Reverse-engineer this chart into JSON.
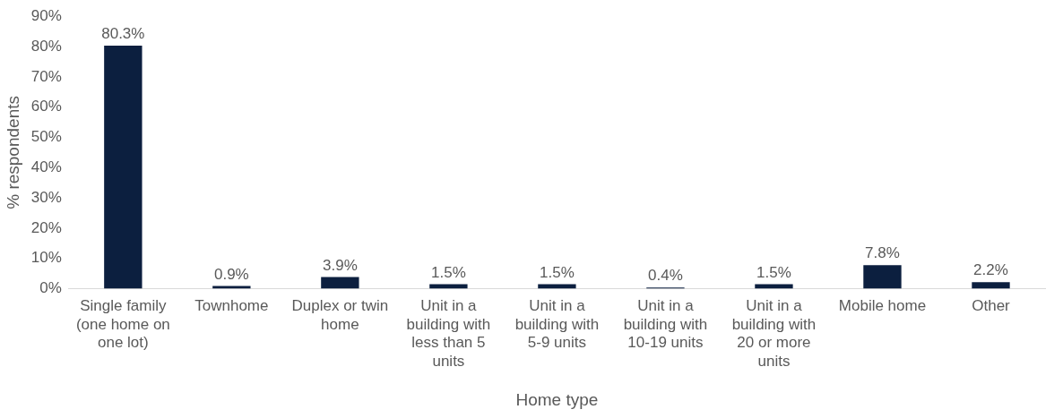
{
  "chart_data": {
    "type": "bar",
    "xlabel": "Home type",
    "ylabel": "% respondents",
    "categories": [
      "Single family (one home on one lot)",
      "Townhome",
      "Duplex or twin home",
      "Unit in a building with less than 5 units",
      "Unit in a building with 5-9 units",
      "Unit in a building with 10-19 units",
      "Unit in a building with 20 or more units",
      "Mobile home",
      "Other"
    ],
    "values": [
      80.3,
      0.9,
      3.9,
      1.5,
      1.5,
      0.4,
      1.5,
      7.8,
      2.2
    ],
    "value_labels": [
      "80.3%",
      "0.9%",
      "3.9%",
      "1.5%",
      "1.5%",
      "0.4%",
      "1.5%",
      "7.8%",
      "2.2%"
    ],
    "color": "#0c1f3f",
    "ylim": [
      0,
      90
    ],
    "yticks": [
      {
        "value": 0,
        "label": "0%"
      },
      {
        "value": 10,
        "label": "10%"
      },
      {
        "value": 20,
        "label": "20%"
      },
      {
        "value": 30,
        "label": "30%"
      },
      {
        "value": 40,
        "label": "40%"
      },
      {
        "value": 50,
        "label": "50%"
      },
      {
        "value": 60,
        "label": "60%"
      },
      {
        "value": 70,
        "label": "70%"
      },
      {
        "value": 80,
        "label": "80%"
      },
      {
        "value": 90,
        "label": "90%"
      }
    ],
    "grid": false,
    "legend": false
  }
}
